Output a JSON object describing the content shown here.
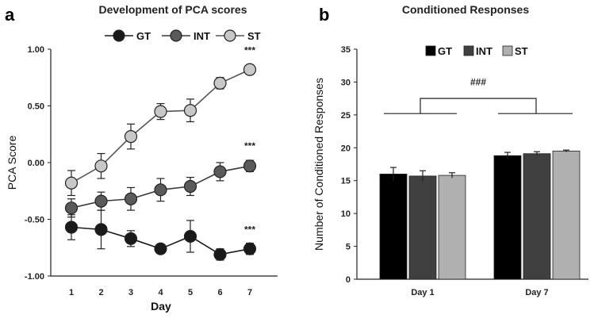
{
  "chart_data": [
    {
      "panel": "a",
      "type": "line",
      "title": "Development of PCA scores",
      "xlabel": "Day",
      "ylabel": "PCA Score",
      "x": [
        1,
        2,
        3,
        4,
        5,
        6,
        7
      ],
      "ylim": [
        -1.0,
        1.0
      ],
      "yticks": [
        1.0,
        0.5,
        0.0,
        -0.5,
        -1.0
      ],
      "ytick_labels": [
        "1.00",
        "0.50",
        "0.00",
        "-0.50",
        "-1.00"
      ],
      "legend": "top",
      "series": [
        {
          "name": "GT",
          "values": [
            -0.57,
            -0.59,
            -0.67,
            -0.76,
            -0.65,
            -0.81,
            -0.76
          ],
          "errors": [
            0.11,
            0.17,
            0.07,
            0.03,
            0.14,
            0.05,
            0.05
          ],
          "color": "#1a1a1a",
          "line": "#1a1a1a"
        },
        {
          "name": "INT",
          "values": [
            -0.4,
            -0.34,
            -0.32,
            -0.24,
            -0.21,
            -0.08,
            -0.03
          ],
          "errors": [
            0.08,
            0.08,
            0.1,
            0.1,
            0.08,
            0.08,
            0.05
          ],
          "color": "#5a5a5a",
          "line": "#3a3a3a"
        },
        {
          "name": "ST",
          "values": [
            -0.18,
            -0.03,
            0.23,
            0.45,
            0.46,
            0.7,
            0.82
          ],
          "errors": [
            0.11,
            0.11,
            0.11,
            0.07,
            0.1,
            0.05,
            0.04
          ],
          "color": "#c8c8c8",
          "line": "#555555"
        }
      ],
      "annotations": [
        {
          "text": "***",
          "x": 7,
          "y": 0.96
        },
        {
          "text": "***",
          "x": 7,
          "y": 0.12
        },
        {
          "text": "***",
          "x": 7,
          "y": -0.62
        }
      ]
    },
    {
      "panel": "b",
      "type": "bar",
      "title": "Conditioned Responses",
      "xlabel": "",
      "ylabel": "Number of Conditioned Responses",
      "categories": [
        "Day 1",
        "Day 7"
      ],
      "ylim": [
        0,
        35
      ],
      "yticks": [
        0,
        5,
        10,
        15,
        20,
        25,
        30,
        35
      ],
      "legend": "top",
      "series": [
        {
          "name": "GT",
          "values": [
            16.0,
            18.8
          ],
          "errors": [
            1.0,
            0.5
          ],
          "color": "#000000"
        },
        {
          "name": "INT",
          "values": [
            15.7,
            19.1
          ],
          "errors": [
            0.8,
            0.3
          ],
          "color": "#404040"
        },
        {
          "name": "ST",
          "values": [
            15.8,
            19.5
          ],
          "errors": [
            0.4,
            0.15
          ],
          "color": "#b0b0b0"
        }
      ],
      "annotations": [
        {
          "text": "###",
          "y": 29.5
        }
      ]
    }
  ]
}
